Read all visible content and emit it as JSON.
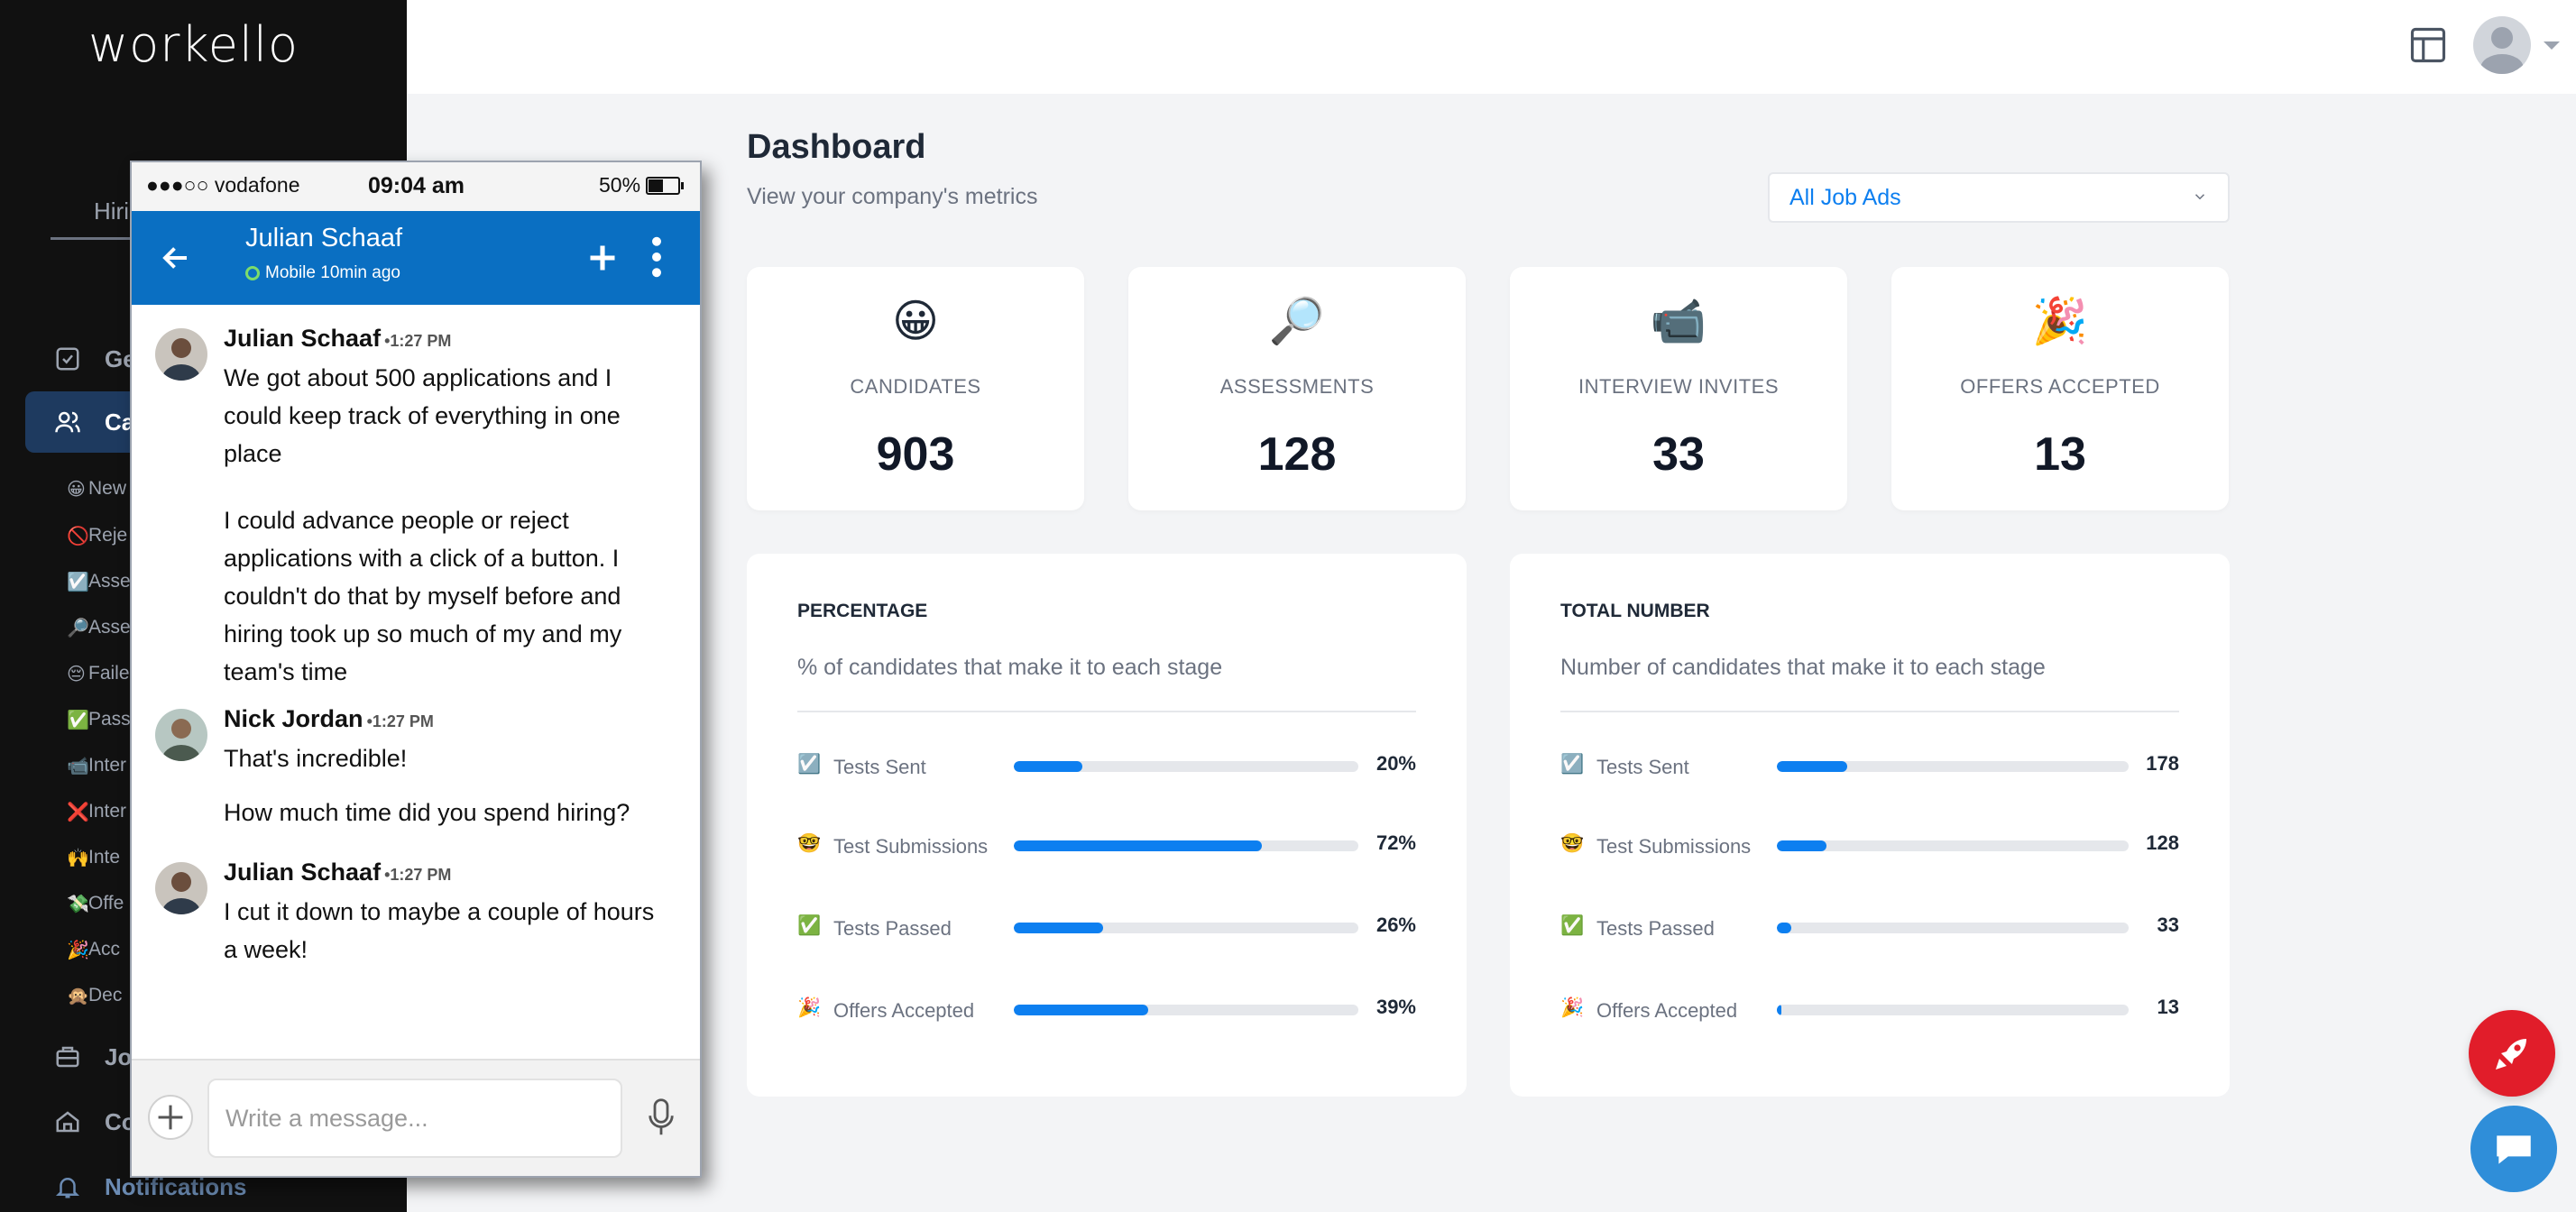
{
  "app": {
    "logo": "workello"
  },
  "sidebar": {
    "tab_label": "Hiri",
    "nav": [
      {
        "label": "Ge",
        "icon": "checkbox-icon"
      },
      {
        "label": "Ca",
        "icon": "users-icon"
      },
      {
        "label": "Jo",
        "icon": "briefcase-icon"
      },
      {
        "label": "Co",
        "icon": "home-icon"
      },
      {
        "label": "Notifications",
        "icon": "bell-icon"
      }
    ],
    "subitems": [
      {
        "emoji": "😀",
        "label": "New"
      },
      {
        "emoji": "🚫",
        "label": "Reje"
      },
      {
        "emoji": "☑️",
        "label": "Asse"
      },
      {
        "emoji": "🔎",
        "label": "Asse"
      },
      {
        "emoji": "😔",
        "label": "Faile"
      },
      {
        "emoji": "✅",
        "label": "Pass"
      },
      {
        "emoji": "📹",
        "label": "Inter"
      },
      {
        "emoji": "❌",
        "label": "Inter"
      },
      {
        "emoji": "🙌",
        "label": "Inte"
      },
      {
        "emoji": "💸",
        "label": "Offe"
      },
      {
        "emoji": "🎉",
        "label": "Acc"
      },
      {
        "emoji": "🙊",
        "label": "Dec"
      }
    ]
  },
  "dashboard": {
    "title": "Dashboard",
    "subtitle": "View your company's metrics",
    "job_filter": "All Job Ads",
    "metrics": [
      {
        "emoji": "😀",
        "label": "CANDIDATES",
        "value": "903"
      },
      {
        "emoji": "🔎",
        "label": "ASSESSMENTS",
        "value": "128"
      },
      {
        "emoji": "📹",
        "label": "INTERVIEW INVITES",
        "value": "33"
      },
      {
        "emoji": "🎉",
        "label": "OFFERS ACCEPTED",
        "value": "13"
      }
    ],
    "percentage": {
      "title": "PERCENTAGE",
      "subtitle": "% of candidates that make it to each stage",
      "rows": [
        {
          "emoji": "☑️",
          "label": "Tests Sent",
          "value": "20%",
          "fill": 0.2
        },
        {
          "emoji": "🤓",
          "label": "Test Submissions",
          "value": "72%",
          "fill": 0.72
        },
        {
          "emoji": "✅",
          "label": "Tests Passed",
          "value": "26%",
          "fill": 0.26
        },
        {
          "emoji": "🎉",
          "label": "Offers Accepted",
          "value": "39%",
          "fill": 0.39
        }
      ]
    },
    "total": {
      "title": "TOTAL NUMBER",
      "subtitle": "Number of candidates that make it to each stage",
      "rows": [
        {
          "emoji": "☑️",
          "label": "Tests Sent",
          "value": "178",
          "fill": 0.2
        },
        {
          "emoji": "🤓",
          "label": "Test Submissions",
          "value": "128",
          "fill": 0.14
        },
        {
          "emoji": "✅",
          "label": "Tests Passed",
          "value": "33",
          "fill": 0.04
        },
        {
          "emoji": "🎉",
          "label": "Offers Accepted",
          "value": "13",
          "fill": 0.014
        }
      ]
    }
  },
  "phone": {
    "carrier": "●●●○○ vodafone",
    "time": "09:04 am",
    "battery": "50%",
    "contact_name": "Julian Schaaf",
    "presence": "Mobile 10min ago",
    "messages": [
      {
        "author": "Julian Schaaf",
        "time": "•1:27 PM",
        "text1": "We got about 500 applications and I could keep track of everything in one place",
        "text2": "I could advance people or reject applications with a click of a button. I couldn't do that by myself before and hiring took up so much of my and my team's time"
      },
      {
        "author": "Nick Jordan",
        "time": "•1:27 PM",
        "text1": "That's incredible!",
        "text2": "How much time did you spend hiring?"
      },
      {
        "author": "Julian Schaaf",
        "time": "•1:27 PM",
        "text1": "I cut it down to maybe a couple of hours a week!"
      }
    ],
    "composer_placeholder": "Write a message..."
  },
  "colors": {
    "accent": "#0d7ff0",
    "sidebar_bg": "#111111",
    "chat_header": "#0a6fc2",
    "rocket": "#e11d2a",
    "chat_fab": "#2f8ed9"
  }
}
